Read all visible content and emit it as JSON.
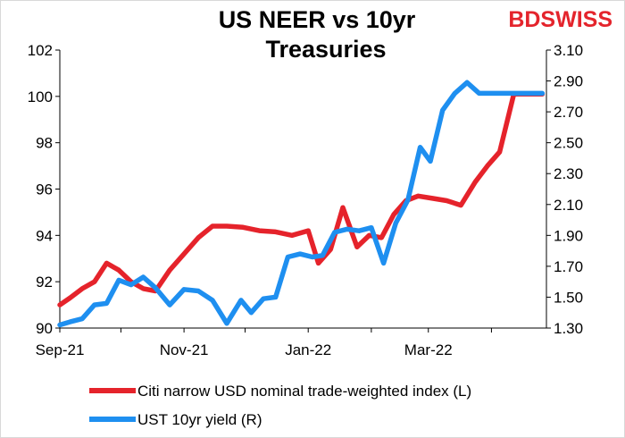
{
  "brand": {
    "logo_left": "BD",
    "logo_right": "SWISS",
    "color": "#e4242c"
  },
  "chart_data": {
    "type": "line",
    "title": [
      "US NEER vs 10yr",
      "Treasuries"
    ],
    "x_ticks": [
      "Sep-21",
      "Nov-21",
      "Jan-22",
      "Mar-22"
    ],
    "y_left": {
      "min": 90,
      "max": 102,
      "ticks": [
        "90",
        "92",
        "94",
        "96",
        "98",
        "100",
        "102"
      ]
    },
    "y_right": {
      "min": 1.3,
      "max": 3.1,
      "ticks": [
        "1.30",
        "1.50",
        "1.70",
        "1.90",
        "2.10",
        "2.30",
        "2.50",
        "2.70",
        "2.90",
        "3.10"
      ]
    },
    "grid": "none",
    "legend_position": "bottom",
    "series": [
      {
        "name": "Citi narrow USD nominal trade-weighted index (L)",
        "axis": "left",
        "color": "#e5232b",
        "x": [
          "2021-09-01",
          "2021-09-06",
          "2021-09-12",
          "2021-09-18",
          "2021-09-24",
          "2021-09-30",
          "2021-10-06",
          "2021-10-12",
          "2021-10-18",
          "2021-10-25",
          "2021-11-01",
          "2021-11-08",
          "2021-11-15",
          "2021-11-22",
          "2021-11-30",
          "2021-12-08",
          "2021-12-16",
          "2021-12-24",
          "2022-01-01",
          "2022-01-06",
          "2022-01-12",
          "2022-01-18",
          "2022-01-25",
          "2022-01-31",
          "2022-02-06",
          "2022-02-12",
          "2022-02-18",
          "2022-02-24",
          "2022-03-03",
          "2022-03-10",
          "2022-03-17",
          "2022-03-24",
          "2022-03-30",
          "2022-04-05",
          "2022-04-12",
          "2022-04-20",
          "2022-04-26"
        ],
        "y": [
          91.0,
          91.3,
          91.7,
          92.0,
          92.8,
          92.5,
          92.0,
          91.7,
          91.6,
          92.5,
          93.2,
          93.9,
          94.4,
          94.4,
          94.35,
          94.2,
          94.15,
          94.0,
          94.2,
          92.8,
          93.4,
          95.2,
          93.5,
          94.0,
          93.9,
          94.9,
          95.5,
          95.7,
          95.6,
          95.5,
          95.3,
          96.3,
          97.0,
          97.6,
          100.1,
          100.1,
          100.1
        ]
      },
      {
        "name": "UST 10yr yield (R)",
        "axis": "right",
        "color": "#1e8ff0",
        "x": [
          "2021-09-01",
          "2021-09-06",
          "2021-09-12",
          "2021-09-18",
          "2021-09-24",
          "2021-09-30",
          "2021-10-06",
          "2021-10-12",
          "2021-10-18",
          "2021-10-25",
          "2021-11-01",
          "2021-11-08",
          "2021-11-15",
          "2021-11-22",
          "2021-11-29",
          "2021-12-04",
          "2021-12-10",
          "2021-12-16",
          "2021-12-22",
          "2021-12-28",
          "2022-01-03",
          "2022-01-08",
          "2022-01-14",
          "2022-01-20",
          "2022-01-26",
          "2022-02-01",
          "2022-02-07",
          "2022-02-13",
          "2022-02-19",
          "2022-02-25",
          "2022-03-02",
          "2022-03-08",
          "2022-03-14",
          "2022-03-20",
          "2022-03-26",
          "2022-04-01",
          "2022-04-07",
          "2022-04-13",
          "2022-04-19",
          "2022-04-26"
        ],
        "y": [
          1.32,
          1.34,
          1.36,
          1.45,
          1.46,
          1.61,
          1.58,
          1.63,
          1.56,
          1.45,
          1.55,
          1.54,
          1.48,
          1.33,
          1.48,
          1.4,
          1.49,
          1.5,
          1.76,
          1.78,
          1.76,
          1.77,
          1.92,
          1.94,
          1.93,
          1.95,
          1.72,
          1.98,
          2.13,
          2.47,
          2.38,
          2.71,
          2.82,
          2.89,
          2.82,
          2.82,
          2.82,
          2.82,
          2.82,
          2.82
        ]
      }
    ]
  }
}
